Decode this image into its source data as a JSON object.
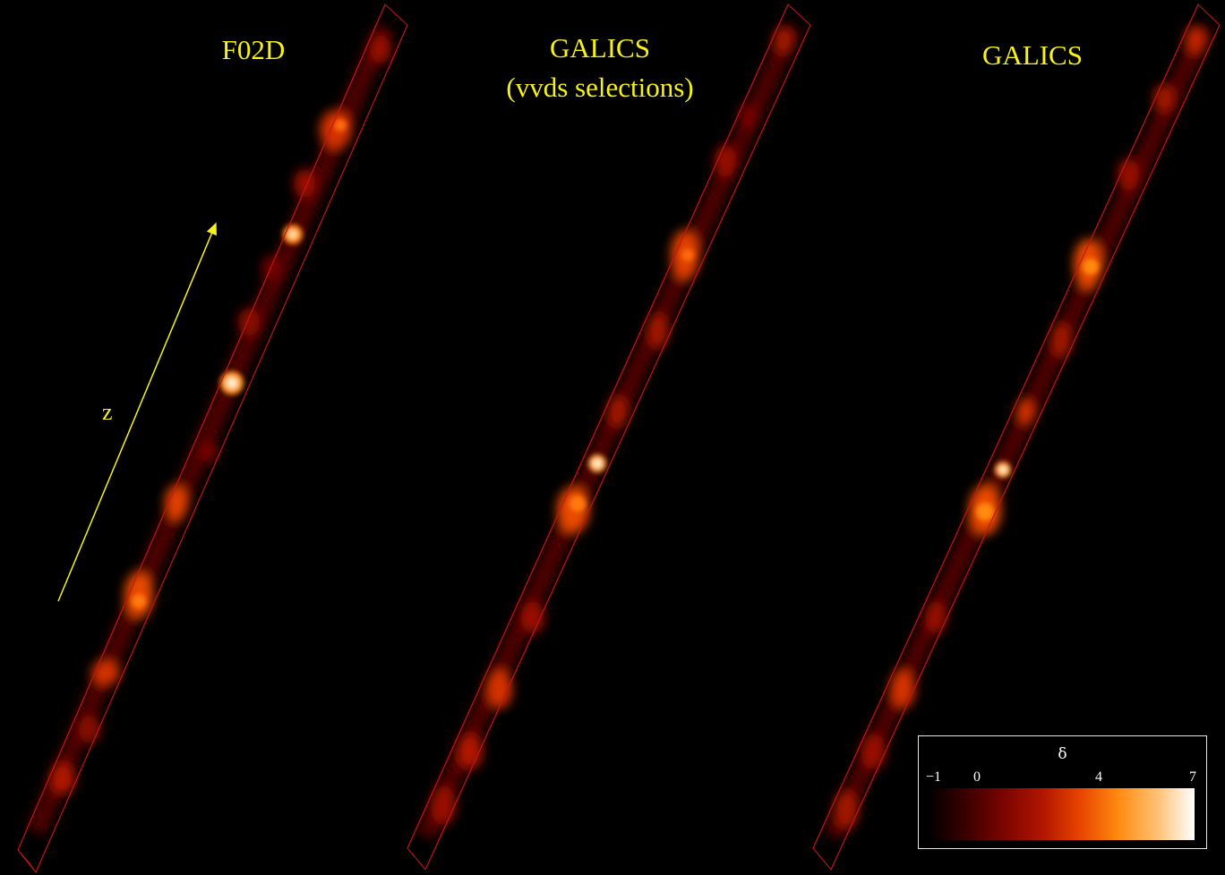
{
  "panels": [
    {
      "title_line1": "F02D",
      "title_line2": ""
    },
    {
      "title_line1": "GALICS",
      "title_line2": "(vvds selections)"
    },
    {
      "title_line1": "GALICS",
      "title_line2": ""
    }
  ],
  "axis": {
    "label": "z"
  },
  "colorbar": {
    "symbol": "δ",
    "ticks": [
      "−1",
      "0",
      "4",
      "7"
    ],
    "colors": [
      "#000000",
      "#3a0000",
      "#7a0500",
      "#b11500",
      "#e84400",
      "#ff8a10",
      "#ffc070",
      "#ffffff"
    ]
  },
  "colors": {
    "title": "#f7f21a",
    "box_edge": "#c81414",
    "arrow": "#f7f21a"
  }
}
